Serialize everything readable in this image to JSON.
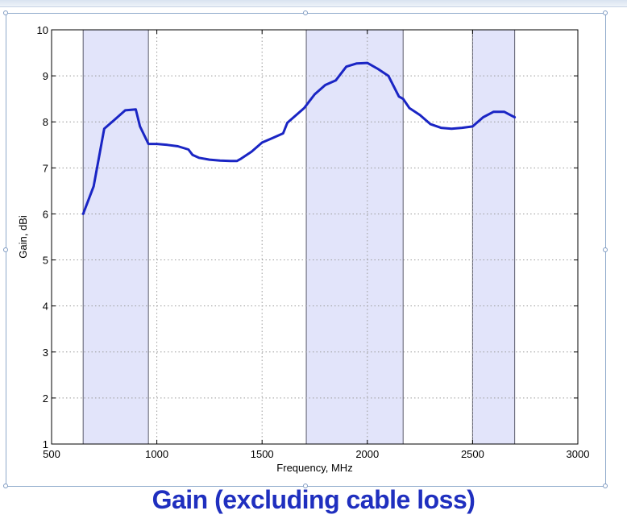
{
  "caption": "Gain (excluding cable loss)",
  "colors": {
    "line": "#1a25c4",
    "band_fill": "#e2e4fa",
    "band_edge": "#5a5a6a",
    "grid": "#9a9a9a",
    "caption": "#1f2fbf"
  },
  "chart_data": {
    "type": "line",
    "xlabel": "Frequency, MHz",
    "ylabel": "Gain, dBi",
    "xlim": [
      500,
      3000
    ],
    "ylim": [
      1,
      10
    ],
    "xticks": [
      500,
      1000,
      1500,
      2000,
      2500,
      3000
    ],
    "yticks": [
      1,
      2,
      3,
      4,
      5,
      6,
      7,
      8,
      9,
      10
    ],
    "grid": true,
    "shaded_bands": [
      [
        650,
        960
      ],
      [
        1710,
        2170
      ],
      [
        2500,
        2700
      ]
    ],
    "series": [
      {
        "x": [
          650,
          700,
          750,
          800,
          850,
          900,
          920,
          960,
          1000,
          1050,
          1100,
          1150,
          1170,
          1200,
          1250,
          1300,
          1350,
          1380,
          1400,
          1450,
          1500,
          1550,
          1600,
          1620,
          1650,
          1700,
          1750,
          1800,
          1850,
          1900,
          1950,
          2000,
          2050,
          2100,
          2150,
          2170,
          2200,
          2250,
          2300,
          2350,
          2400,
          2450,
          2500,
          2550,
          2600,
          2650,
          2700
        ],
        "y": [
          6.0,
          6.6,
          7.85,
          8.05,
          8.25,
          8.27,
          7.9,
          7.52,
          7.52,
          7.5,
          7.47,
          7.4,
          7.28,
          7.22,
          7.18,
          7.16,
          7.15,
          7.15,
          7.2,
          7.35,
          7.55,
          7.65,
          7.75,
          7.98,
          8.1,
          8.3,
          8.6,
          8.8,
          8.9,
          9.2,
          9.27,
          9.28,
          9.15,
          9.0,
          8.55,
          8.5,
          8.3,
          8.15,
          7.95,
          7.87,
          7.85,
          7.87,
          7.9,
          8.1,
          8.22,
          8.22,
          8.1
        ]
      }
    ]
  }
}
